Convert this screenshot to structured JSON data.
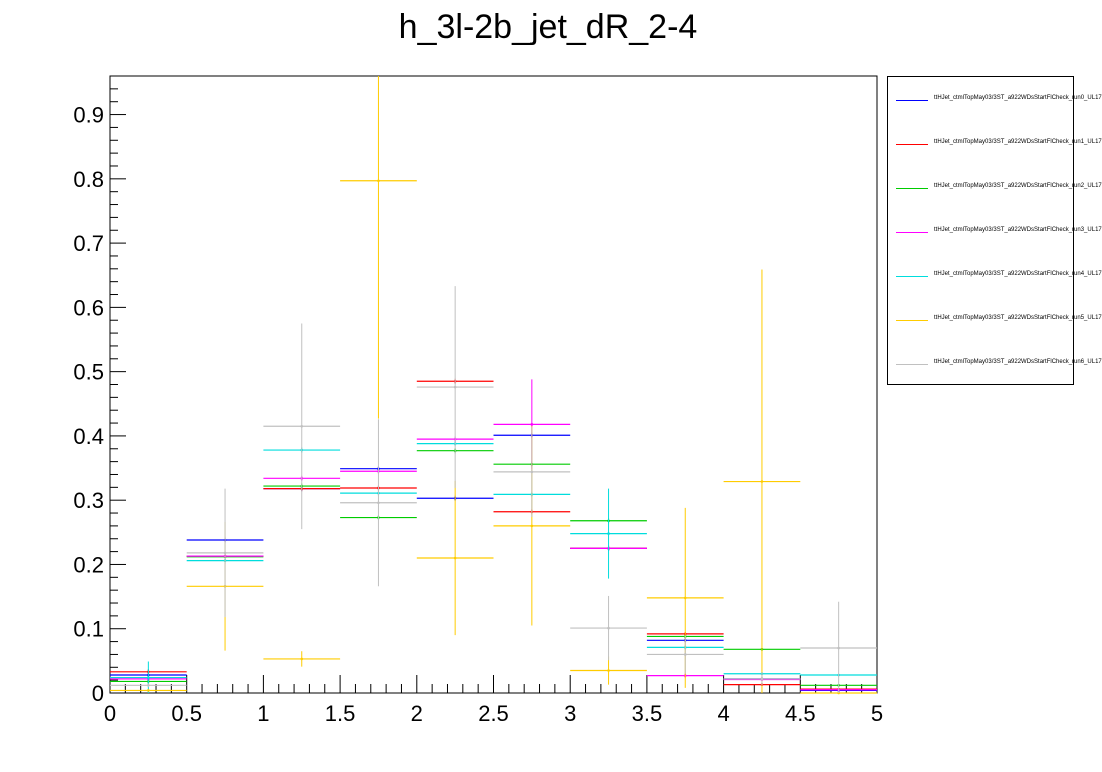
{
  "chart_data": {
    "type": "histogram",
    "title": "h_3l-2b_jet_dR_2-4",
    "xlabel": "",
    "ylabel": "",
    "xlim": [
      0,
      5
    ],
    "ylim": [
      0,
      0.96
    ],
    "grid": false,
    "legend_position": "right",
    "x_tick_labels": [
      "0",
      "0.5",
      "1",
      "1.5",
      "2",
      "2.5",
      "3",
      "3.5",
      "4",
      "4.5",
      "5"
    ],
    "y_tick_labels": [
      "0",
      "0.1",
      "0.2",
      "0.3",
      "0.4",
      "0.5",
      "0.6",
      "0.7",
      "0.8",
      "0.9"
    ],
    "bins": [
      0.25,
      0.75,
      1.25,
      1.75,
      2.25,
      2.75,
      3.25,
      3.75,
      4.25,
      4.75
    ],
    "bin_width": 0.5,
    "series": [
      {
        "name": "ttHJet_ctmlTopMay03/3ST_a922WDsStartFlCheck_run0_UL17",
        "color": "#0000ff",
        "values": [
          0.028,
          0.238,
          0.318,
          0.349,
          0.303,
          0.401,
          0.225,
          0.082,
          0.022,
          0.004
        ],
        "errors": [
          0.004,
          0.005,
          0.004,
          0.004,
          0.004,
          0.004,
          0.004,
          0.003,
          0.002,
          0.001
        ]
      },
      {
        "name": "ttHJet_ctmlTopMay03/3ST_a922WDsStartFlCheck_run1_UL17",
        "color": "#ff0000",
        "values": [
          0.033,
          0.213,
          0.318,
          0.319,
          0.485,
          0.282,
          0.225,
          0.092,
          0.013,
          0.006
        ],
        "errors": [
          0.004,
          0.005,
          0.004,
          0.004,
          0.004,
          0.004,
          0.004,
          0.003,
          0.002,
          0.001
        ]
      },
      {
        "name": "ttHJet_ctmlTopMay03/3ST_a922WDsStartFlCheck_run2_UL17",
        "color": "#00cc00",
        "values": [
          0.018,
          0.212,
          0.322,
          0.273,
          0.377,
          0.356,
          0.268,
          0.088,
          0.068,
          0.012
        ],
        "errors": [
          0.004,
          0.005,
          0.004,
          0.004,
          0.004,
          0.004,
          0.004,
          0.003,
          0.002,
          0.001
        ]
      },
      {
        "name": "ttHJet_ctmlTopMay03/3ST_a922WDsStartFlCheck_run3_UL17",
        "color": "#ff00ff",
        "values": [
          0.022,
          0.213,
          0.334,
          0.345,
          0.395,
          0.418,
          0.225,
          0.027,
          0.021,
          0.005
        ],
        "errors": [
          0.004,
          0.005,
          0.004,
          0.004,
          0.004,
          0.07,
          0.004,
          0.003,
          0.002,
          0.001
        ]
      },
      {
        "name": "ttHJet_ctmlTopMay03/3ST_a922WDsStartFlCheck_run4_UL17",
        "color": "#00dddd",
        "values": [
          0.024,
          0.206,
          0.378,
          0.311,
          0.388,
          0.309,
          0.248,
          0.071,
          0.03,
          0.028
        ],
        "errors": [
          0.025,
          0.005,
          0.004,
          0.004,
          0.004,
          0.004,
          0.07,
          0.003,
          0.002,
          0.001
        ]
      },
      {
        "name": "ttHJet_ctmlTopMay03/3ST_a922WDsStartFlCheck_run5_UL17",
        "color": "#ffcc00",
        "values": [
          0.004,
          0.166,
          0.053,
          0.797,
          0.21,
          0.26,
          0.035,
          0.148,
          0.329,
          0.0
        ],
        "errors": [
          0.002,
          0.1,
          0.012,
          0.37,
          0.12,
          0.155,
          0.022,
          0.14,
          0.33,
          0.001
        ]
      },
      {
        "name": "ttHJet_ctmlTopMay03/3ST_a922WDsStartFlCheck_run6_UL17",
        "color": "#c0c0c0",
        "values": [
          0.012,
          0.218,
          0.415,
          0.296,
          0.476,
          0.344,
          0.101,
          0.06,
          0.022,
          0.07
        ],
        "errors": [
          0.003,
          0.1,
          0.16,
          0.13,
          0.157,
          0.07,
          0.05,
          0.03,
          0.01,
          0.072
        ]
      }
    ]
  }
}
